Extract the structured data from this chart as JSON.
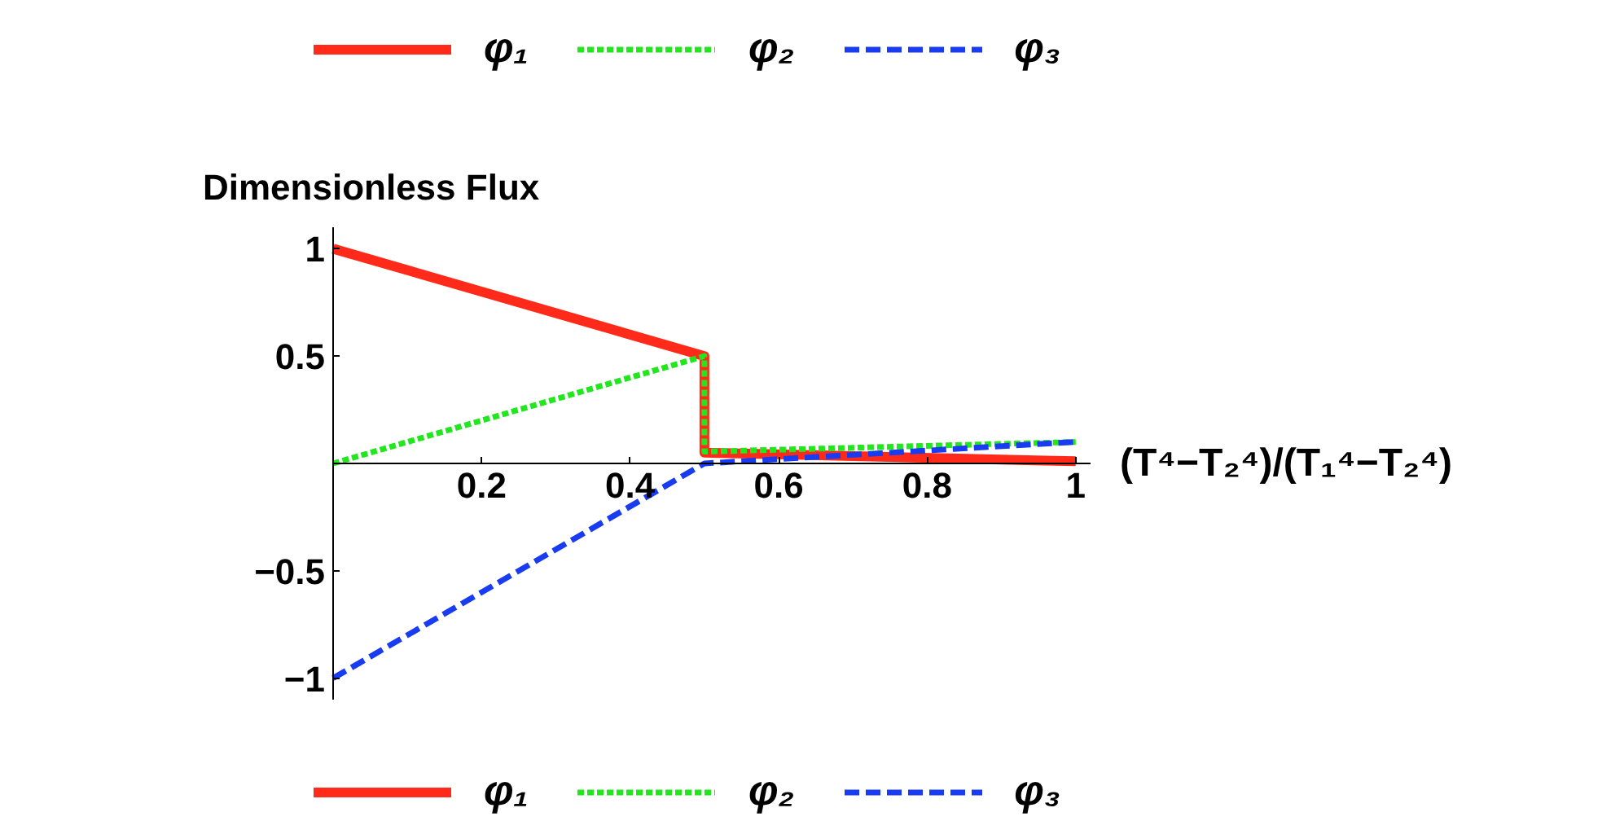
{
  "chart_data": {
    "type": "line",
    "xlabel": "(T⁴−T₂⁴)/(T₁⁴−T₂⁴)",
    "ylabel": "Dimensionless Flux",
    "xlim": [
      0,
      1.02
    ],
    "ylim": [
      -1.1,
      1.1
    ],
    "xticks": [
      0.2,
      0.4,
      0.6,
      0.8,
      1
    ],
    "yticks": [
      {
        "value": -1,
        "label": "−1"
      },
      {
        "value": -0.5,
        "label": "−0.5"
      },
      0.5,
      1
    ],
    "grid": false,
    "legend": [
      "top",
      "bottom"
    ],
    "series": [
      {
        "name": "φ₁",
        "color": "#ff2a1a",
        "line_style": "solid",
        "x": [
          0,
          0.5,
          0.5,
          1
        ],
        "values": [
          1,
          0.5,
          0.05,
          0.01
        ]
      },
      {
        "name": "φ₂",
        "color": "#22e61e",
        "line_style": "dotted",
        "x": [
          0,
          0.5,
          0.5,
          1
        ],
        "values": [
          0,
          0.5,
          0.055,
          0.1
        ]
      },
      {
        "name": "φ₃",
        "color": "#1a3cf0",
        "line_style": "dashed",
        "x": [
          0,
          0.5,
          1
        ],
        "values": [
          -1,
          0,
          0.1
        ]
      }
    ]
  }
}
